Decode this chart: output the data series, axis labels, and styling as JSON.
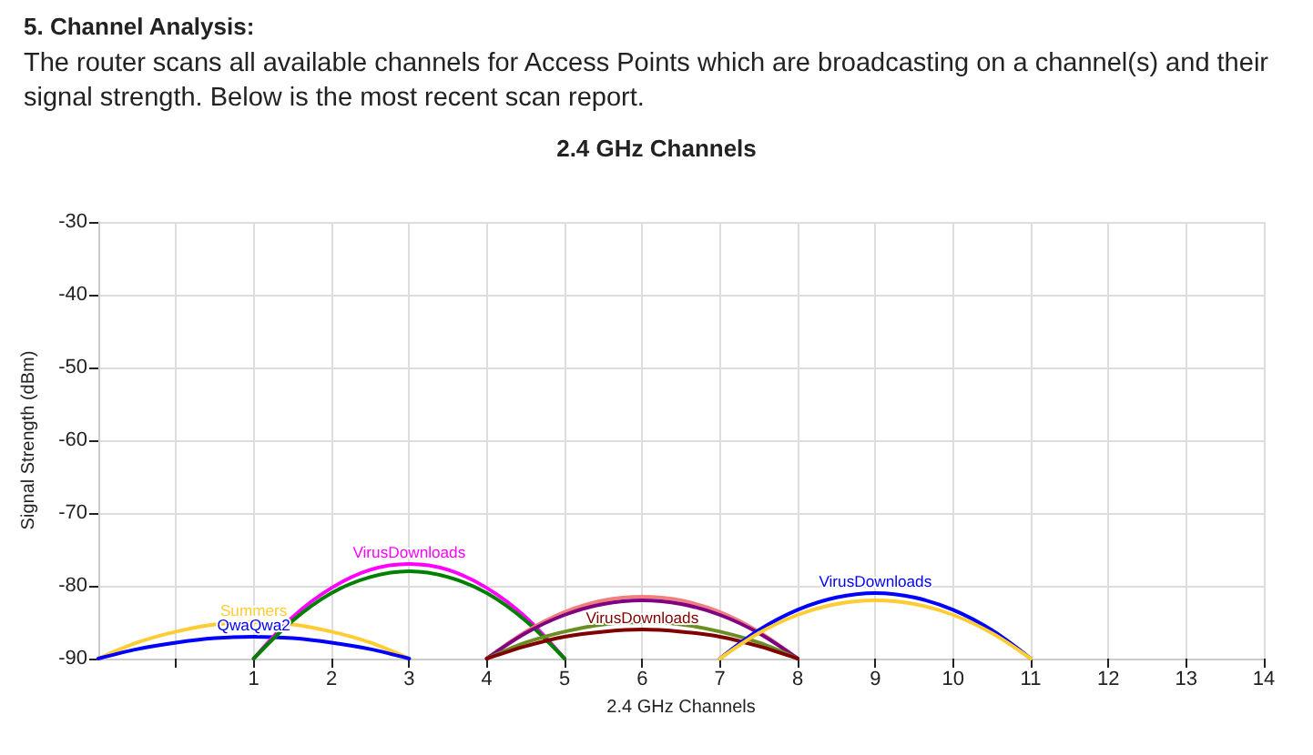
{
  "chart_data": {
    "type": "line",
    "title": "2.4 GHz Channels",
    "xlabel": "2.4 GHz Channels",
    "ylabel": "Signal Strength (dBm)",
    "annotations": [
      "5. Channel Analysis:",
      "The router scans all available channels for Access Points which are broadcasting on a channel(s) and their signal strength. Below is the most recent scan report."
    ],
    "xlim": [
      -1,
      14
    ],
    "xticks": [
      {
        "value": 0,
        "label": null
      },
      1,
      2,
      3,
      4,
      5,
      6,
      7,
      8,
      9,
      10,
      11,
      12,
      13,
      14
    ],
    "ylim": [
      -90,
      -30
    ],
    "yticks": [
      -90,
      -80,
      -70,
      -60,
      -50,
      -40,
      -30
    ],
    "grid": true,
    "marker": "none",
    "line_style": "solid",
    "series": [
      {
        "name": "Summers",
        "color": "#ffcc33",
        "x": [
          -1,
          -0.5,
          0,
          0.5,
          1,
          1.5,
          2,
          2.5,
          3
        ],
        "values": [
          -90,
          -87.8,
          -86.3,
          -85.3,
          -85,
          -85.3,
          -86.3,
          -87.8,
          -90
        ]
      },
      {
        "name": "QwaQwa2",
        "color": "#0000ff",
        "x": [
          -1,
          -0.5,
          0,
          0.5,
          1,
          1.5,
          2,
          2.5,
          3
        ],
        "values": [
          -90,
          -88.7,
          -87.8,
          -87.2,
          -87,
          -87.2,
          -87.8,
          -88.7,
          -90
        ]
      },
      {
        "name": "VirusDownloads",
        "color": "#ff00ff",
        "x": [
          1,
          1.5,
          2,
          2.5,
          3,
          3.5,
          4,
          4.5,
          5
        ],
        "values": [
          -90,
          -84.3,
          -80.3,
          -77.8,
          -77,
          -77.8,
          -80.3,
          -84.3,
          -90
        ]
      },
      {
        "color": "#008000",
        "x": [
          1,
          1.5,
          2,
          2.5,
          3,
          3.5,
          4,
          4.5,
          5
        ],
        "values": [
          -90,
          -84.8,
          -81,
          -78.8,
          -78,
          -78.8,
          -81,
          -84.8,
          -90
        ]
      },
      {
        "color": "#f08080",
        "x": [
          4,
          4.5,
          5,
          5.5,
          6,
          6.5,
          7,
          7.5,
          8
        ],
        "values": [
          -90,
          -86.3,
          -83.6,
          -82,
          -81.5,
          -82,
          -83.6,
          -86.3,
          -90
        ]
      },
      {
        "color": "#800080",
        "x": [
          4,
          4.5,
          5,
          5.5,
          6,
          6.5,
          7,
          7.5,
          8
        ],
        "values": [
          -90,
          -86.5,
          -84,
          -82.5,
          -82,
          -82.5,
          -84,
          -86.5,
          -90
        ]
      },
      {
        "color": "#6b8e23",
        "x": [
          4,
          4.5,
          5,
          5.5,
          6,
          6.5,
          7,
          7.5,
          8
        ],
        "values": [
          -90,
          -87.8,
          -86.3,
          -85.3,
          -85,
          -85.3,
          -86.3,
          -87.8,
          -90
        ]
      },
      {
        "name": "VirusDownloads",
        "color": "#800000",
        "x": [
          4,
          4.5,
          5,
          5.5,
          6,
          6.5,
          7,
          7.5,
          8
        ],
        "values": [
          -90,
          -88.3,
          -87,
          -86.3,
          -86,
          -86.3,
          -87,
          -88.3,
          -90
        ]
      },
      {
        "name": "VirusDownloads",
        "color": "#0000ff",
        "x": [
          7,
          7.5,
          8,
          8.5,
          9,
          9.5,
          10,
          10.5,
          11
        ],
        "values": [
          -90,
          -86.1,
          -83.3,
          -81.6,
          -81,
          -81.6,
          -83.3,
          -86.1,
          -90
        ]
      },
      {
        "color": "#ffcc33",
        "x": [
          7,
          7.5,
          8,
          8.5,
          9,
          9.5,
          10,
          10.5,
          11
        ],
        "values": [
          -90,
          -86.5,
          -84,
          -82.5,
          -82,
          -82.5,
          -84,
          -86.5,
          -90
        ]
      }
    ]
  }
}
